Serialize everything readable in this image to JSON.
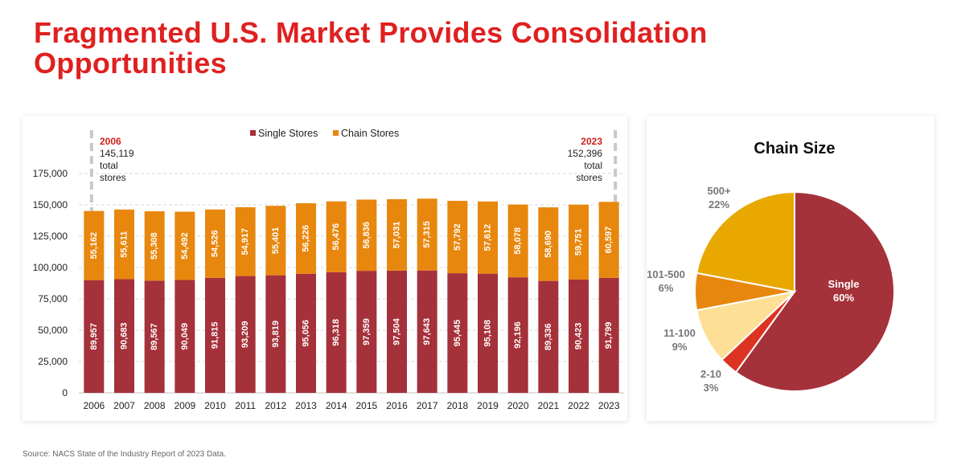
{
  "title": "Fragmented U.S. Market Provides Consolidation Opportunities",
  "source": "Source: NACS State of the Industry Report of 2023 Data.",
  "colors": {
    "single": "#a5313a",
    "chain": "#e8870e",
    "title": "#e02020",
    "annotation_year": "#d02020"
  },
  "chart_data": [
    {
      "type": "bar",
      "stacked": true,
      "categories": [
        "2006",
        "2007",
        "2008",
        "2009",
        "2010",
        "2011",
        "2012",
        "2013",
        "2014",
        "2015",
        "2016",
        "2017",
        "2018",
        "2019",
        "2020",
        "2021",
        "2022",
        "2023"
      ],
      "series": [
        {
          "name": "Single Stores",
          "color": "#a5313a",
          "values": [
            89957,
            90683,
            89567,
            90049,
            91815,
            93209,
            93819,
            95056,
            96318,
            97359,
            97504,
            97643,
            95445,
            95108,
            92196,
            89336,
            90423,
            91799
          ],
          "labels": [
            "89,957",
            "90,683",
            "89,567",
            "90,049",
            "91,815",
            "93,209",
            "93,819",
            "95,056",
            "96,318",
            "97,359",
            "97,504",
            "97,643",
            "95,445",
            "95,108",
            "92,196",
            "89,336",
            "90,423",
            "91,799"
          ]
        },
        {
          "name": "Chain Stores",
          "color": "#e8870e",
          "values": [
            55162,
            55611,
            55308,
            54492,
            54526,
            54917,
            55401,
            56226,
            56476,
            56836,
            57031,
            57315,
            57792,
            57612,
            58078,
            58690,
            59751,
            60597
          ],
          "labels": [
            "55,162",
            "55,611",
            "55,308",
            "54,492",
            "54,526",
            "54,917",
            "55,401",
            "56,226",
            "56,476",
            "56,836",
            "57,031",
            "57,315",
            "57,792",
            "57,612",
            "58,078",
            "58,690",
            "59,751",
            "60,597"
          ]
        }
      ],
      "ylim": [
        0,
        175000
      ],
      "yticks": [
        0,
        25000,
        50000,
        75000,
        100000,
        125000,
        150000,
        175000
      ],
      "ytick_labels": [
        "0",
        "25,000",
        "50,000",
        "75,000",
        "100,000",
        "125,000",
        "150,000",
        "175,000"
      ],
      "grid": true,
      "legend": "top-center",
      "annotations": [
        {
          "year": "2006",
          "lines": [
            "145,119",
            "total",
            "stores"
          ],
          "align": "left"
        },
        {
          "year": "2023",
          "lines": [
            "152,396",
            "total",
            "stores"
          ],
          "align": "right"
        }
      ]
    },
    {
      "type": "pie",
      "title": "Chain Size",
      "slices": [
        {
          "name": "Single",
          "pct": "60%",
          "value": 60,
          "color": "#a5313a",
          "label_color": "#ffffff"
        },
        {
          "name": "2-10",
          "pct": "3%",
          "value": 3,
          "color": "#dd3322",
          "label_color": "#777777"
        },
        {
          "name": "11-100",
          "pct": "9%",
          "value": 9,
          "color": "#fde095",
          "label_color": "#777777"
        },
        {
          "name": "101-500",
          "pct": "6%",
          "value": 6,
          "color": "#e8870e",
          "label_color": "#777777"
        },
        {
          "name": "500+",
          "pct": "22%",
          "value": 22,
          "color": "#e8a800",
          "label_color": "#777777"
        }
      ]
    }
  ]
}
